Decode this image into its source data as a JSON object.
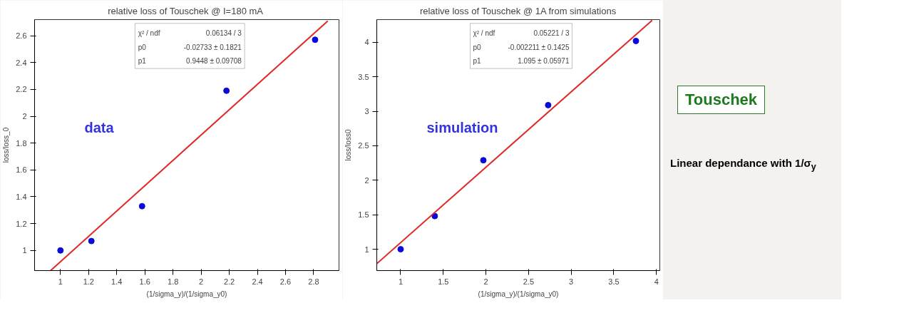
{
  "chart_data": [
    {
      "type": "scatter",
      "title": "relative loss of Touschek  @ I=180 mA",
      "xlabel": "(1/sigma_y)/(1/sigma_y0)",
      "ylabel": "loss/loss_0",
      "xlim": [
        0.816,
        2.98
      ],
      "ylim": [
        0.85,
        2.72
      ],
      "xticks": [
        1,
        1.2,
        1.4,
        1.6,
        1.8,
        2,
        2.2,
        2.4,
        2.6,
        2.8
      ],
      "yticks": [
        1,
        1.2,
        1.4,
        1.6,
        1.8,
        2,
        2.2,
        2.4,
        2.6
      ],
      "grid": false,
      "annotations": [
        "data",
        "χ² / ndf",
        "0.06134 / 3",
        "p0",
        "-0.02733 ± 0.1821",
        "p1",
        "0.9448 ± 0.09708"
      ],
      "series": [
        {
          "marker": "circle",
          "color": "#0a0adc",
          "x": [
            1,
            1.22,
            1.58,
            2.18,
            2.81
          ],
          "values": [
            1.0,
            1.07,
            1.33,
            2.19,
            2.57
          ]
        },
        {
          "type": "line",
          "color": "#e02828",
          "x": [
            0.93,
            2.9
          ],
          "values": [
            0.85,
            2.71
          ]
        }
      ]
    },
    {
      "type": "scatter",
      "title": "relative loss of Touschek @ 1A from simulations",
      "xlabel": "(1/sigma_y)/(1/sigma_y0)",
      "ylabel": "loss/loss0",
      "xlim": [
        0.72,
        4.04
      ],
      "ylim": [
        0.69,
        4.33
      ],
      "xticks": [
        1,
        1.5,
        2,
        2.5,
        3,
        3.5,
        4
      ],
      "yticks": [
        1,
        1.5,
        2,
        2.5,
        3,
        3.5,
        4
      ],
      "grid": false,
      "annotations": [
        "simulation",
        "χ² / ndf",
        "0.05221 / 3",
        "p0",
        "-0.002211 ± 0.1425",
        "p1",
        "1.095 ± 0.05971",
        "Touschek",
        "Linear dependance with 1/σ$_{y}$"
      ],
      "series": [
        {
          "marker": "circle",
          "color": "#0a0adc",
          "x": [
            1,
            1.4,
            1.97,
            2.73,
            3.76
          ],
          "values": [
            1.0,
            1.48,
            2.29,
            3.09,
            4.02
          ]
        },
        {
          "type": "line",
          "color": "#e02828",
          "x": [
            0.72,
            3.95
          ],
          "values": [
            0.79,
            4.32
          ]
        }
      ]
    }
  ]
}
